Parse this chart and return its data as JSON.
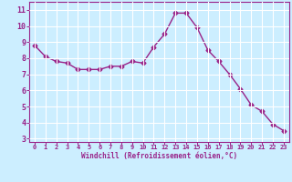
{
  "x": [
    0,
    1,
    2,
    3,
    4,
    5,
    6,
    7,
    8,
    9,
    10,
    11,
    12,
    13,
    14,
    15,
    16,
    17,
    18,
    19,
    20,
    21,
    22,
    23
  ],
  "y": [
    8.8,
    8.1,
    7.8,
    7.7,
    7.3,
    7.3,
    7.3,
    7.5,
    7.5,
    7.8,
    7.7,
    8.7,
    9.5,
    10.8,
    10.8,
    9.9,
    8.5,
    7.8,
    7.0,
    6.1,
    5.1,
    4.7,
    3.9,
    3.5
  ],
  "line_color": "#992288",
  "marker": "D",
  "marker_size": 2.5,
  "bg_color": "#cceeff",
  "grid_color": "#ffffff",
  "xlabel": "Windchill (Refroidissement éolien,°C)",
  "xlim": [
    -0.5,
    23.5
  ],
  "ylim": [
    2.8,
    11.5
  ],
  "yticks": [
    3,
    4,
    5,
    6,
    7,
    8,
    9,
    10,
    11
  ],
  "xticks": [
    0,
    1,
    2,
    3,
    4,
    5,
    6,
    7,
    8,
    9,
    10,
    11,
    12,
    13,
    14,
    15,
    16,
    17,
    18,
    19,
    20,
    21,
    22,
    23
  ],
  "tick_color": "#992288",
  "label_color": "#992288",
  "spine_color": "#992288"
}
